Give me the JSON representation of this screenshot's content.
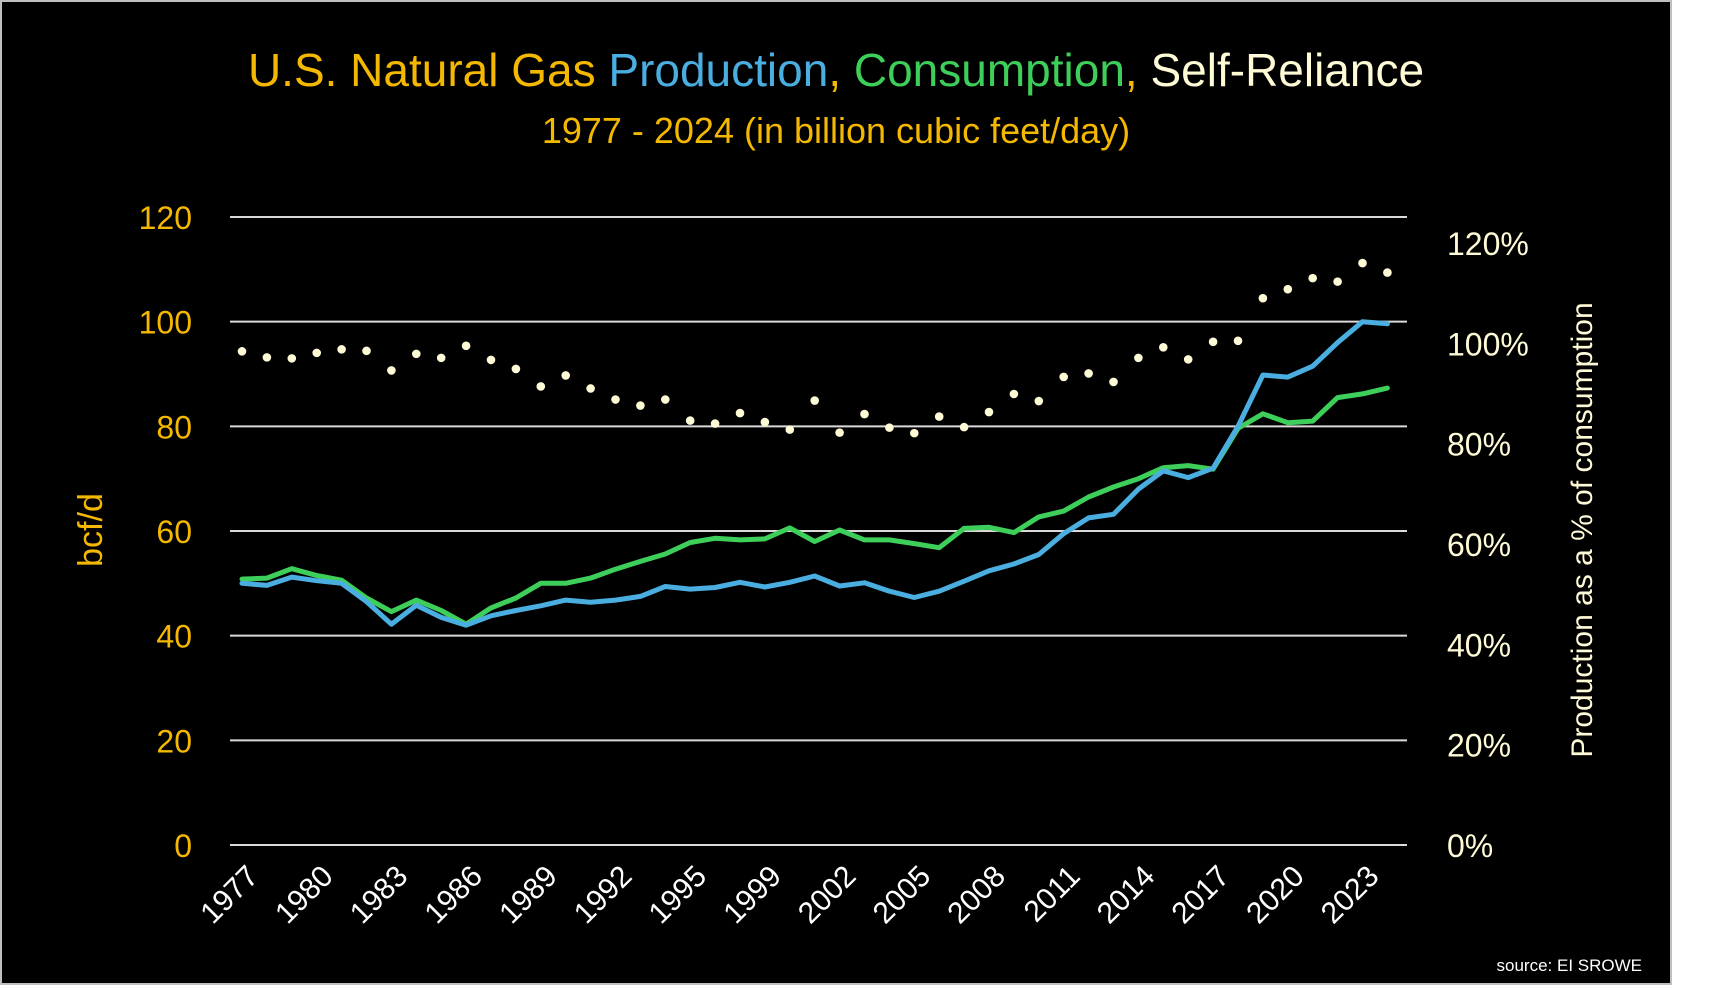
{
  "chart_data": {
    "type": "line",
    "title": {
      "parts": [
        {
          "text": "U.S. Natural Gas ",
          "color": "#f5b800"
        },
        {
          "text": "Production",
          "color": "#4aaee0"
        },
        {
          "text": ", ",
          "color": "#f5b800"
        },
        {
          "text": "Consumption",
          "color": "#3ecf5a"
        },
        {
          "text": ", ",
          "color": "#f5b800"
        },
        {
          "text": "Self-Reliance",
          "color": "#fffbd6"
        }
      ]
    },
    "subtitle": "1977 - 2024 (in billion cubic feet/day)",
    "ylabel_left": "bcf/d",
    "ylabel_right": "Production as a % of consumption",
    "source": "source: EI SROWE",
    "left_axis": {
      "min": 0,
      "max": 120,
      "step": 20,
      "ticks": [
        "0",
        "20",
        "40",
        "60",
        "80",
        "100",
        "120"
      ]
    },
    "right_axis": {
      "min": 0,
      "max": 1.3,
      "ticks": [
        "0%",
        "20%",
        "40%",
        "60%",
        "80%",
        "100%",
        "120%"
      ],
      "tick_values": [
        0,
        0.2,
        0.4,
        0.6,
        0.8,
        1.0,
        1.2
      ]
    },
    "x_tick_labels": [
      "1977",
      "1980",
      "1983",
      "1986",
      "1989",
      "1992",
      "1995",
      "1999",
      "2002",
      "2005",
      "2008",
      "2011",
      "2014",
      "2017",
      "2020",
      "2023"
    ],
    "colors": {
      "axis_text": "#f5b800",
      "right_axis_text": "#fffbd6",
      "x_text": "#ffffff",
      "grid": "#d9d9d9",
      "production": "#4aaee0",
      "consumption": "#3ecf5a",
      "self_reliance": "#fffbd6"
    },
    "series": [
      {
        "name": "Production",
        "axis": "left",
        "values": [
          50.0,
          49.6,
          51.2,
          50.5,
          50.0,
          46.5,
          42.2,
          45.8,
          43.5,
          42.0,
          43.8,
          44.8,
          45.7,
          46.8,
          46.4,
          46.8,
          47.5,
          49.4,
          48.9,
          49.2,
          50.2,
          49.3,
          50.2,
          51.4,
          49.5,
          50.1,
          48.5,
          47.3,
          48.5,
          50.4,
          52.4,
          53.7,
          55.5,
          59.5,
          62.5,
          63.2,
          68.0,
          71.5,
          70.2,
          72.0,
          80.0,
          89.8,
          89.4,
          91.5,
          96.0,
          100.0,
          99.6
        ]
      },
      {
        "name": "Consumption",
        "axis": "left",
        "values": [
          50.8,
          51.0,
          52.8,
          51.5,
          50.6,
          47.2,
          44.6,
          46.8,
          44.8,
          42.2,
          45.3,
          47.2,
          50.0,
          50.0,
          51.0,
          52.7,
          54.2,
          55.6,
          57.8,
          58.6,
          58.3,
          58.5,
          60.6,
          58.0,
          60.2,
          58.3,
          58.3,
          57.6,
          56.8,
          60.5,
          60.7,
          59.7,
          62.7,
          63.8,
          66.5,
          68.4,
          70.0,
          72.1,
          72.5,
          71.8,
          79.6,
          82.4,
          80.7,
          81.0,
          85.5,
          86.2,
          87.3
        ]
      },
      {
        "name": "Self-Reliance",
        "axis": "right",
        "style": "dotted",
        "values": [
          0.984,
          0.972,
          0.97,
          0.981,
          0.988,
          0.985,
          0.946,
          0.979,
          0.971,
          0.995,
          0.967,
          0.949,
          0.914,
          0.936,
          0.91,
          0.888,
          0.876,
          0.888,
          0.846,
          0.84,
          0.861,
          0.843,
          0.828,
          0.886,
          0.822,
          0.859,
          0.832,
          0.821,
          0.854,
          0.833,
          0.863,
          0.899,
          0.885,
          0.933,
          0.94,
          0.923,
          0.971,
          0.992,
          0.968,
          1.003,
          1.005,
          1.09,
          1.108,
          1.13,
          1.123,
          1.16,
          1.141
        ]
      }
    ]
  }
}
